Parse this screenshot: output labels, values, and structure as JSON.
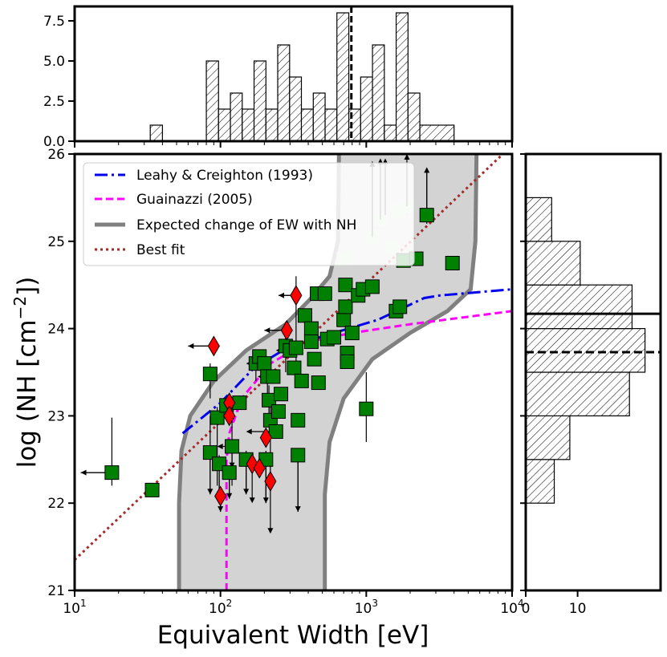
{
  "chart_data": {
    "type": "scatter",
    "xlabel": "Equivalent Width [eV]",
    "ylabel": "log (NH [cm",
    "ylabel_sup": "−2",
    "ylabel_end": "])",
    "xscale": "log",
    "xlim": [
      10,
      10000
    ],
    "ylim": [
      21,
      26
    ],
    "xticks": [
      {
        "value": 10,
        "base": "10",
        "exp": "1"
      },
      {
        "value": 100,
        "base": "10",
        "exp": "2"
      },
      {
        "value": 1000,
        "base": "10",
        "exp": "3"
      },
      {
        "value": 10000,
        "base": "10",
        "exp": "4"
      }
    ],
    "yticks": [
      {
        "value": 21,
        "label": "21"
      },
      {
        "value": 22,
        "label": "22"
      },
      {
        "value": 23,
        "label": "23"
      },
      {
        "value": 24,
        "label": "24"
      },
      {
        "value": 25,
        "label": "25"
      },
      {
        "value": 26,
        "label": "26"
      }
    ],
    "legend": {
      "placement": "upper-left",
      "entries": [
        {
          "label": "Leahy & Creighton (1993)",
          "color": "#0000ee",
          "style": "dashdot"
        },
        {
          "label": "Guainazzi (2005)",
          "color": "#ff00ff",
          "style": "dashed"
        },
        {
          "label": "Expected change of EW with NH",
          "color": "#808080",
          "style": "solid-thick"
        },
        {
          "label": "Best fit",
          "color": "#a52a2a",
          "style": "dotted"
        }
      ]
    },
    "colors": {
      "square_fill": "#008000",
      "diamond_fill": "#ff0000",
      "band_fill": "#d3d3d3",
      "band_edge": "#808080",
      "leahy": "#0000ee",
      "guainazzi": "#ff00ff",
      "bestfit": "#a52a2a"
    },
    "best_fit": [
      [
        10,
        21.35
      ],
      [
        10000,
        26.1
      ]
    ],
    "leahy_curve": [
      [
        55,
        22.8
      ],
      [
        100,
        23.15
      ],
      [
        170,
        23.55
      ],
      [
        300,
        23.8
      ],
      [
        600,
        23.95
      ],
      [
        1200,
        24.1
      ],
      [
        2500,
        24.35
      ],
      [
        3200,
        24.38
      ],
      [
        10000,
        24.45
      ]
    ],
    "guainazzi_curve": [
      [
        110,
        21.0
      ],
      [
        110,
        22.5
      ],
      [
        115,
        22.8
      ],
      [
        140,
        23.2
      ],
      [
        220,
        23.6
      ],
      [
        400,
        23.85
      ],
      [
        800,
        23.95
      ],
      [
        2000,
        24.05
      ],
      [
        10000,
        24.2
      ]
    ],
    "band_left": [
      [
        52,
        21.0
      ],
      [
        52,
        22.0
      ],
      [
        54,
        22.6
      ],
      [
        62,
        23.0
      ],
      [
        90,
        23.4
      ],
      [
        150,
        23.75
      ],
      [
        280,
        24.05
      ],
      [
        420,
        24.35
      ],
      [
        560,
        24.6
      ],
      [
        640,
        25.0
      ],
      [
        650,
        26.0
      ]
    ],
    "band_right": [
      [
        520,
        21.0
      ],
      [
        520,
        22.1
      ],
      [
        560,
        22.7
      ],
      [
        700,
        23.2
      ],
      [
        1100,
        23.65
      ],
      [
        2000,
        23.95
      ],
      [
        3600,
        24.2
      ],
      [
        5200,
        24.45
      ],
      [
        5600,
        25.0
      ],
      [
        5700,
        26.0
      ]
    ],
    "squares": [
      {
        "x": 18,
        "y": 22.35,
        "xerr": [
          11,
          18
        ],
        "yerr": [
          22.2,
          22.98
        ]
      },
      {
        "x": 34,
        "y": 22.15
      },
      {
        "x": 85,
        "y": 23.48,
        "yerr": [
          23.2,
          23.6
        ]
      },
      {
        "x": 85,
        "y": 22.58,
        "yerr": [
          22.1,
          23.0
        ]
      },
      {
        "x": 95,
        "y": 22.98,
        "yerr": [
          22.2,
          23.1
        ]
      },
      {
        "x": 98,
        "y": 22.45,
        "yerr": [
          22.0,
          22.55
        ]
      },
      {
        "x": 110,
        "y": 23.12
      },
      {
        "x": 115,
        "y": 22.35,
        "yerr": [
          22.05,
          22.4
        ]
      },
      {
        "x": 120,
        "y": 22.65,
        "yerr": [
          22.2,
          23.1
        ]
      },
      {
        "x": 135,
        "y": 23.15
      },
      {
        "x": 150,
        "y": 22.5,
        "yerr": [
          22.1,
          22.6
        ]
      },
      {
        "x": 175,
        "y": 23.6,
        "yerr": [
          23.4,
          23.7
        ]
      },
      {
        "x": 185,
        "y": 23.68
      },
      {
        "x": 200,
        "y": 23.6
      },
      {
        "x": 205,
        "y": 22.5,
        "yerr": [
          22.0,
          22.6
        ]
      },
      {
        "x": 210,
        "y": 23.45,
        "yerr": [
          23.2,
          23.55
        ]
      },
      {
        "x": 215,
        "y": 23.18,
        "yerr": [
          22.9,
          23.35
        ]
      },
      {
        "x": 220,
        "y": 22.95,
        "yerr": [
          22.2,
          23.1
        ]
      },
      {
        "x": 230,
        "y": 23.45
      },
      {
        "x": 240,
        "y": 22.82
      },
      {
        "x": 250,
        "y": 23.05
      },
      {
        "x": 260,
        "y": 23.25
      },
      {
        "x": 280,
        "y": 23.8,
        "yerr": [
          23.5,
          23.9
        ]
      },
      {
        "x": 300,
        "y": 23.75
      },
      {
        "x": 320,
        "y": 23.55
      },
      {
        "x": 330,
        "y": 23.78,
        "yerr": [
          23.5,
          24.6
        ]
      },
      {
        "x": 340,
        "y": 22.95
      },
      {
        "x": 340,
        "y": 22.55,
        "yerr": [
          21.9,
          22.6
        ]
      },
      {
        "x": 360,
        "y": 23.4
      },
      {
        "x": 380,
        "y": 24.15
      },
      {
        "x": 420,
        "y": 24.0
      },
      {
        "x": 420,
        "y": 23.85
      },
      {
        "x": 440,
        "y": 23.65
      },
      {
        "x": 460,
        "y": 24.4
      },
      {
        "x": 470,
        "y": 23.38
      },
      {
        "x": 520,
        "y": 24.4
      },
      {
        "x": 540,
        "y": 23.88
      },
      {
        "x": 600,
        "y": 23.9
      },
      {
        "x": 700,
        "y": 24.1
      },
      {
        "x": 720,
        "y": 24.5
      },
      {
        "x": 720,
        "y": 24.25
      },
      {
        "x": 740,
        "y": 23.72
      },
      {
        "x": 740,
        "y": 23.62
      },
      {
        "x": 800,
        "y": 23.95
      },
      {
        "x": 880,
        "y": 24.38
      },
      {
        "x": 950,
        "y": 24.45
      },
      {
        "x": 1000,
        "y": 23.08,
        "yerr": [
          22.7,
          23.5
        ]
      },
      {
        "x": 1100,
        "y": 24.48
      },
      {
        "x": 1600,
        "y": 24.2
      },
      {
        "x": 1700,
        "y": 24.25
      },
      {
        "x": 1800,
        "y": 24.78
      },
      {
        "x": 2200,
        "y": 24.8
      },
      {
        "x": 2600,
        "y": 25.3,
        "yerr": [
          25.2,
          25.8
        ]
      },
      {
        "x": 3900,
        "y": 24.75
      }
    ],
    "faded_squares": [
      {
        "x": 700,
        "y": 24.8
      },
      {
        "x": 1100,
        "y": 25.05,
        "yerr": [
          25.0,
          25.9
        ]
      },
      {
        "x": 1250,
        "y": 25.25,
        "yerr": [
          25.2,
          25.95
        ]
      },
      {
        "x": 1500,
        "y": 24.95
      },
      {
        "x": 1650,
        "y": 25.35
      },
      {
        "x": 1900,
        "y": 25.4,
        "yerr": [
          25.3,
          26.0
        ]
      }
    ],
    "diamonds": [
      {
        "x": 90,
        "y": 23.8,
        "xerr": [
          60,
          90
        ]
      },
      {
        "x": 100,
        "y": 22.08,
        "yerr": [
          21.9,
          22.1
        ]
      },
      {
        "x": 115,
        "y": 23.15
      },
      {
        "x": 115,
        "y": 23.0
      },
      {
        "x": 165,
        "y": 22.45
      },
      {
        "x": 185,
        "y": 22.4
      },
      {
        "x": 205,
        "y": 22.75
      },
      {
        "x": 220,
        "y": 22.25
      },
      {
        "x": 285,
        "y": 23.98,
        "xerr": [
          200,
          285
        ]
      },
      {
        "x": 330,
        "y": 24.38,
        "xerr": [
          250,
          330
        ]
      }
    ],
    "left_arrow_points": [
      {
        "x": 18,
        "y": 22.35,
        "to": 11
      },
      {
        "x": 90,
        "y": 23.8,
        "to": 60
      },
      {
        "x": 285,
        "y": 23.98,
        "to": 200
      },
      {
        "x": 330,
        "y": 24.38,
        "to": 250
      },
      {
        "x": 135,
        "y": 23.15,
        "to": 110
      },
      {
        "x": 200,
        "y": 23.6,
        "to": 150
      },
      {
        "x": 240,
        "y": 22.82,
        "to": 150
      },
      {
        "x": 230,
        "y": 23.45,
        "to": 180
      },
      {
        "x": 120,
        "y": 22.65,
        "to": 95
      },
      {
        "x": 300,
        "y": 23.75,
        "to": 240
      }
    ],
    "down_arrow_points": [
      {
        "x": 85,
        "y": 22.58,
        "to": 22.1
      },
      {
        "x": 98,
        "y": 22.45,
        "to": 22.0
      },
      {
        "x": 100,
        "y": 22.08,
        "to": 21.9
      },
      {
        "x": 115,
        "y": 22.35,
        "to": 22.05
      },
      {
        "x": 150,
        "y": 22.5,
        "to": 22.1
      },
      {
        "x": 165,
        "y": 22.45,
        "to": 22.0
      },
      {
        "x": 205,
        "y": 22.5,
        "to": 22.0
      },
      {
        "x": 220,
        "y": 22.25,
        "to": 21.65
      },
      {
        "x": 340,
        "y": 22.55,
        "to": 21.9
      },
      {
        "x": 120,
        "y": 22.65,
        "to": 22.4
      }
    ],
    "up_arrow_points": [
      {
        "x": 2600,
        "y": 25.3,
        "to": 25.85
      },
      {
        "x": 1250,
        "y": 25.25,
        "to": 25.95
      },
      {
        "x": 1900,
        "y": 25.4,
        "to": 26.0
      },
      {
        "x": 1100,
        "y": 25.05,
        "to": 25.92
      },
      {
        "x": 1350,
        "y": 25.3,
        "to": 25.95
      }
    ],
    "top_histogram": {
      "type": "bar",
      "xscale": "log",
      "ylim": [
        0,
        8.4
      ],
      "yticks": [
        {
          "value": 0,
          "label": "0.0"
        },
        {
          "value": 2.5,
          "label": "2.5"
        },
        {
          "value": 5,
          "label": "5.0"
        },
        {
          "value": 7.5,
          "label": "7.5"
        }
      ],
      "bins": [
        [
          33,
          40,
          1
        ],
        [
          80,
          97,
          5
        ],
        [
          97,
          117,
          2
        ],
        [
          117,
          141,
          3
        ],
        [
          141,
          170,
          2
        ],
        [
          170,
          205,
          5
        ],
        [
          205,
          247,
          2
        ],
        [
          247,
          298,
          6
        ],
        [
          298,
          359,
          4
        ],
        [
          359,
          433,
          2
        ],
        [
          433,
          522,
          3
        ],
        [
          522,
          629,
          2
        ],
        [
          629,
          759,
          8
        ],
        [
          759,
          915,
          2
        ],
        [
          915,
          1103,
          4
        ],
        [
          1103,
          1330,
          6
        ],
        [
          1330,
          1603,
          1
        ],
        [
          1603,
          1933,
          8
        ],
        [
          1933,
          2330,
          3
        ],
        [
          2330,
          4000,
          1
        ]
      ],
      "marker_line_x": 790
    },
    "right_histogram": {
      "type": "bar",
      "orientation": "horizontal",
      "xlim": [
        0,
        26
      ],
      "xticks": [
        {
          "value": 0,
          "label": "0"
        },
        {
          "value": 10,
          "label": "10"
        }
      ],
      "bins": [
        [
          22.0,
          22.5,
          5.5
        ],
        [
          22.5,
          23.0,
          8.5
        ],
        [
          23.0,
          23.5,
          20
        ],
        [
          23.5,
          24.0,
          23
        ],
        [
          24.0,
          24.5,
          20.5
        ],
        [
          24.5,
          25.0,
          10.5
        ],
        [
          25.0,
          25.5,
          5
        ]
      ],
      "solid_line_y": 24.17,
      "dashed_line_y": 23.73
    }
  }
}
